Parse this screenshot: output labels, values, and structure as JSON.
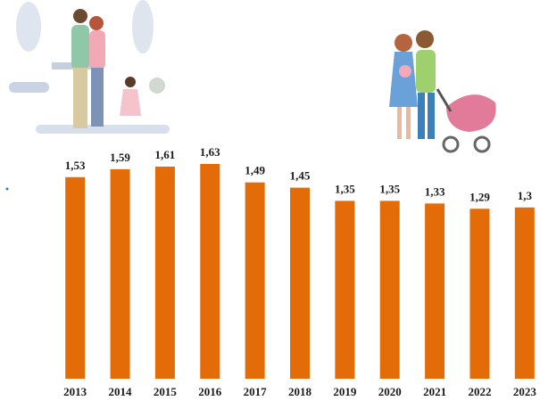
{
  "chart_data": {
    "type": "bar",
    "categories": [
      "2013",
      "2014",
      "2015",
      "2016",
      "2017",
      "2018",
      "2019",
      "2020",
      "2021",
      "2022",
      "2023"
    ],
    "values": [
      1.53,
      1.59,
      1.61,
      1.63,
      1.49,
      1.45,
      1.35,
      1.35,
      1.33,
      1.29,
      1.3
    ],
    "value_labels": [
      "1,53",
      "1,59",
      "1,61",
      "1,63",
      "1,49",
      "1,45",
      "1,35",
      "1,35",
      "1,33",
      "1,29",
      "1,3"
    ],
    "color": "#e36c09"
  }
}
